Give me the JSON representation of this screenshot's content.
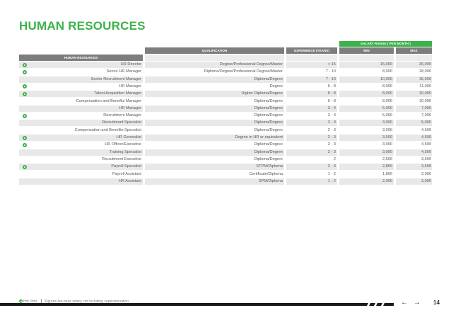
{
  "page": {
    "title": "HUMAN RESOURCES",
    "page_number": "14"
  },
  "table": {
    "salary_header": "SALARY RANGE ( PER MONTH )",
    "headers": {
      "title": "HUMAN RESOURCES",
      "qualification": "QUALIFICATION",
      "experience": "EXPERIENCE (YEARS)",
      "min": "MIN",
      "max": "MAX"
    },
    "rows": [
      {
        "hot": true,
        "title": "HR Director",
        "qualification": "Degree/Professional Degree/Master",
        "experience": "> 15",
        "min": "15,000",
        "max": "30,000"
      },
      {
        "hot": true,
        "title": "Senior HR Manager",
        "qualification": "Diploma/Degree/Professional Degree/Master",
        "experience": "7 - 10",
        "min": "8,000",
        "max": "18,000"
      },
      {
        "hot": false,
        "title": "Senior Recruitment Manager",
        "qualification": "Diploma/Degree",
        "experience": "7 - 10",
        "min": "10,000",
        "max": "15,000"
      },
      {
        "hot": true,
        "title": "HR Manager",
        "qualification": "Degree",
        "experience": "6 - 8",
        "min": "8,000",
        "max": "11,000"
      },
      {
        "hot": true,
        "title": "Talent Acquisition Manager",
        "qualification": "Higher Diploma/Degree",
        "experience": "6 - 8",
        "min": "8,000",
        "max": "10,000"
      },
      {
        "hot": false,
        "title": "Compensation and Benefits Manager",
        "qualification": "Diploma/Degree",
        "experience": "6 - 8",
        "min": "8,000",
        "max": "10,000"
      },
      {
        "hot": false,
        "title": "HR Manager",
        "qualification": "Diploma/Degree",
        "experience": "3 - 4",
        "min": "5,000",
        "max": "7,000"
      },
      {
        "hot": true,
        "title": "Recruitment Manager",
        "qualification": "Diploma/Degree",
        "experience": "3 - 4",
        "min": "5,000",
        "max": "7,000"
      },
      {
        "hot": false,
        "title": "Recruitment Specialist",
        "qualification": "Diploma/Degree",
        "experience": "2 - 3",
        "min": "3,000",
        "max": "5,000"
      },
      {
        "hot": false,
        "title": "Compensation and Benefits Specialist",
        "qualification": "Diploma/Degree",
        "experience": "2 - 3",
        "min": "3,000",
        "max": "4,500"
      },
      {
        "hot": true,
        "title": "HR Generalist",
        "qualification": "Degree in HR or equivalent",
        "experience": "2 - 3",
        "min": "3,500",
        "max": "4,500"
      },
      {
        "hot": true,
        "title": "HR Officer/Executive",
        "qualification": "Diploma/Degree",
        "experience": "2 - 3",
        "min": "3,000",
        "max": "4,500"
      },
      {
        "hot": false,
        "title": "Training Specialist",
        "qualification": "Diploma/Degree",
        "experience": "2 - 3",
        "min": "3,000",
        "max": "4,500"
      },
      {
        "hot": false,
        "title": "Recruitment Executive",
        "qualification": "Diploma/Degree",
        "experience": "2",
        "min": "2,500",
        "max": "3,500"
      },
      {
        "hot": true,
        "title": "Payroll Specialist",
        "qualification": "STPM/Diploma",
        "experience": "2 - 3",
        "min": "2,800",
        "max": "3,500"
      },
      {
        "hot": false,
        "title": "Payroll Assistant",
        "qualification": "Certificate/Diploma",
        "experience": "1 - 2",
        "min": "1,800",
        "max": "3,000"
      },
      {
        "hot": false,
        "title": "HR Assistant",
        "qualification": "SPM/Diploma",
        "experience": "1 - 2",
        "min": "2,000",
        "max": "3,000"
      }
    ]
  },
  "footer": {
    "hot_jobs_label": "Hot Jobs",
    "note": "Figures are base salary, not including superannuation."
  },
  "nav": {
    "prev_icon": "arrow-left-icon",
    "next_icon": "arrow-right-icon",
    "prev_glyph": "←",
    "next_glyph": "→"
  },
  "colors": {
    "accent": "#3cb24a",
    "header_gray": "#7d7d7d",
    "row_gray": "#e8e8e8"
  }
}
